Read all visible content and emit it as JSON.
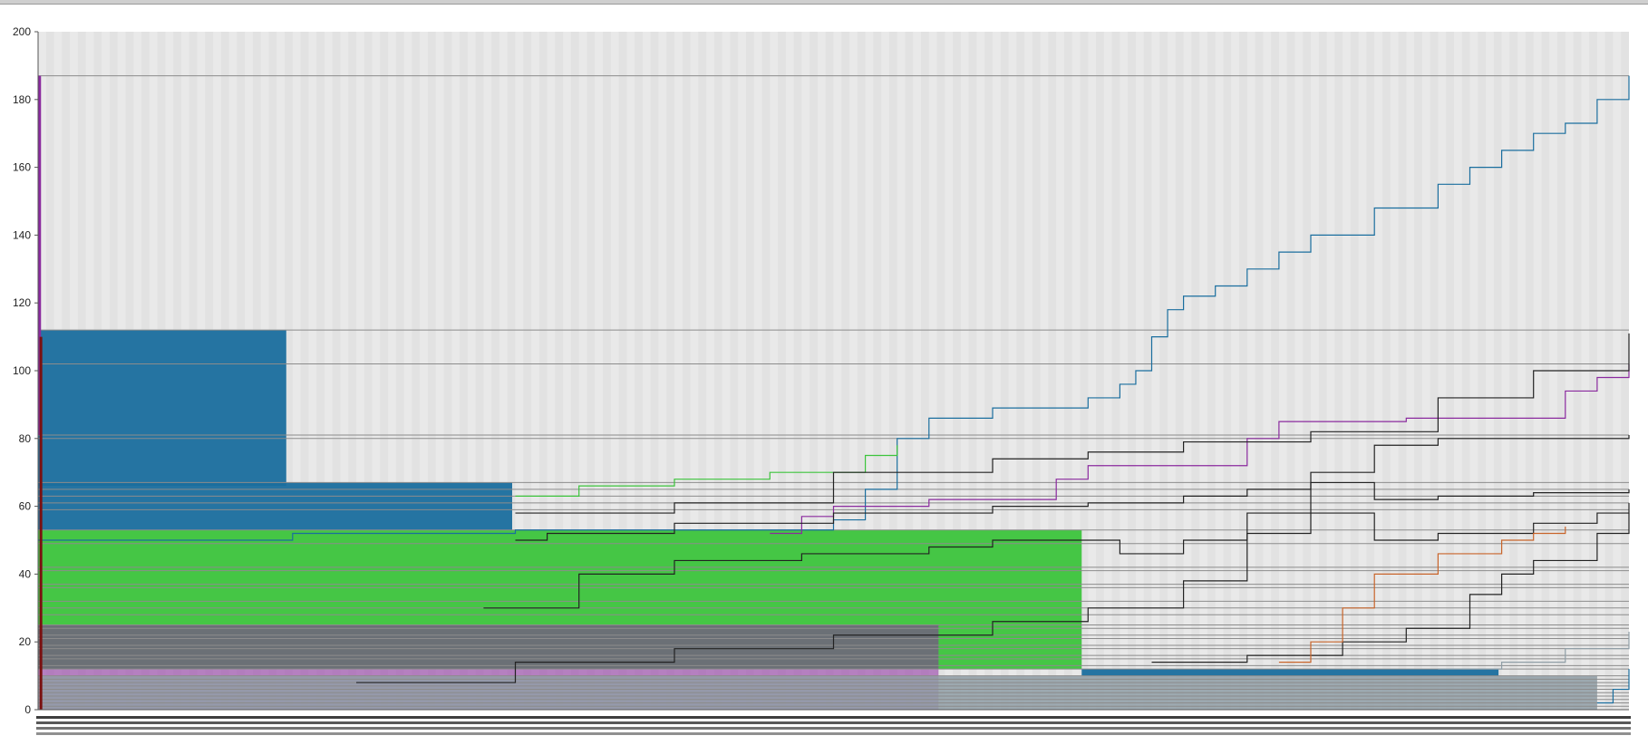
{
  "chart_data": {
    "type": "line",
    "title": "",
    "xlabel": "",
    "ylabel": "",
    "ylim": [
      0,
      200
    ],
    "y_ticks": [
      "0",
      "20",
      "40",
      "60",
      "80",
      "100",
      "120",
      "140",
      "160",
      "180",
      "200"
    ],
    "x_categories_count": 500,
    "grid": "vertical bands",
    "legend": "none",
    "colors": {
      "plot_background": "#e2e2e2",
      "band_light": "#e9e9e9",
      "horizontal_line": "#8c8c8c",
      "blue": "#1a6e9e",
      "green": "#3cc43c",
      "purple": "#8a2a9e",
      "orange": "#c8642a",
      "gray": "#8f9ea6",
      "black": "#222222",
      "dark_red": "#7a1010"
    },
    "blocks": [
      {
        "name": "",
        "color": "blue",
        "x_start": 0,
        "x_end": 78,
        "y_bottom": 66,
        "y_top": 112
      },
      {
        "name": "",
        "color": "blue",
        "x_start": 0,
        "x_end": 149,
        "y_bottom": 53,
        "y_top": 67
      },
      {
        "name": "",
        "color": "green",
        "x_start": 0,
        "x_end": 328,
        "y_bottom": 12,
        "y_top": 53
      },
      {
        "name": "",
        "color": "purple",
        "x_start": 0,
        "x_end": 283,
        "y_bottom": 0,
        "y_top": 25
      },
      {
        "name": "",
        "color": "gray",
        "x_start": 0,
        "x_end": 490,
        "y_bottom": 0,
        "y_top": 10
      },
      {
        "name": "",
        "color": "blue",
        "x_start": 328,
        "x_end": 459,
        "y_bottom": 10,
        "y_top": 12
      }
    ],
    "series": [
      {
        "name": "",
        "color": "blue",
        "points": [
          [
            0,
            50
          ],
          [
            80,
            52
          ],
          [
            150,
            53
          ],
          [
            250,
            56
          ],
          [
            260,
            65
          ],
          [
            270,
            80
          ],
          [
            280,
            86
          ],
          [
            300,
            89
          ],
          [
            330,
            92
          ],
          [
            340,
            96
          ],
          [
            345,
            100
          ],
          [
            350,
            110
          ],
          [
            355,
            118
          ],
          [
            360,
            122
          ],
          [
            370,
            125
          ],
          [
            380,
            130
          ],
          [
            390,
            135
          ],
          [
            400,
            140
          ],
          [
            420,
            148
          ],
          [
            440,
            155
          ],
          [
            450,
            160
          ],
          [
            460,
            165
          ],
          [
            470,
            170
          ],
          [
            480,
            173
          ],
          [
            490,
            180
          ],
          [
            500,
            187
          ]
        ]
      },
      {
        "name": "",
        "color": "green",
        "points": [
          [
            150,
            63
          ],
          [
            170,
            66
          ],
          [
            200,
            68
          ],
          [
            230,
            70
          ],
          [
            260,
            75
          ],
          [
            270,
            78
          ]
        ]
      },
      {
        "name": "",
        "color": "purple",
        "points": [
          [
            230,
            52
          ],
          [
            240,
            57
          ],
          [
            250,
            60
          ],
          [
            280,
            62
          ],
          [
            320,
            68
          ],
          [
            330,
            72
          ],
          [
            380,
            80
          ],
          [
            390,
            85
          ],
          [
            430,
            86
          ],
          [
            480,
            94
          ],
          [
            490,
            98
          ],
          [
            500,
            102
          ]
        ]
      },
      {
        "name": "",
        "color": "black",
        "points": [
          [
            150,
            58
          ],
          [
            200,
            61
          ],
          [
            250,
            70
          ],
          [
            300,
            74
          ],
          [
            330,
            76
          ],
          [
            360,
            79
          ],
          [
            400,
            82
          ],
          [
            440,
            92
          ],
          [
            470,
            100
          ],
          [
            500,
            111
          ]
        ]
      },
      {
        "name": "",
        "color": "black",
        "points": [
          [
            150,
            50
          ],
          [
            160,
            52
          ],
          [
            200,
            55
          ],
          [
            250,
            58
          ],
          [
            300,
            60
          ],
          [
            330,
            61
          ],
          [
            360,
            63
          ],
          [
            380,
            65
          ],
          [
            400,
            67
          ],
          [
            420,
            62
          ],
          [
            440,
            63
          ],
          [
            470,
            64
          ],
          [
            500,
            65
          ]
        ]
      },
      {
        "name": "",
        "color": "black",
        "points": [
          [
            140,
            30
          ],
          [
            170,
            40
          ],
          [
            200,
            44
          ],
          [
            240,
            46
          ],
          [
            280,
            48
          ],
          [
            300,
            50
          ],
          [
            320,
            50
          ],
          [
            340,
            46
          ],
          [
            360,
            50
          ],
          [
            380,
            58
          ],
          [
            400,
            70
          ],
          [
            420,
            78
          ],
          [
            440,
            80
          ],
          [
            460,
            80
          ],
          [
            480,
            80
          ],
          [
            500,
            81
          ]
        ]
      },
      {
        "name": "",
        "color": "black",
        "points": [
          [
            100,
            8
          ],
          [
            150,
            14
          ],
          [
            200,
            18
          ],
          [
            250,
            22
          ],
          [
            300,
            26
          ],
          [
            330,
            30
          ],
          [
            360,
            38
          ],
          [
            380,
            52
          ],
          [
            400,
            58
          ],
          [
            420,
            50
          ],
          [
            440,
            52
          ],
          [
            470,
            55
          ],
          [
            490,
            58
          ],
          [
            500,
            61
          ]
        ]
      },
      {
        "name": "",
        "color": "black",
        "points": [
          [
            350,
            14
          ],
          [
            380,
            16
          ],
          [
            410,
            20
          ],
          [
            430,
            24
          ],
          [
            450,
            34
          ],
          [
            460,
            40
          ],
          [
            470,
            44
          ],
          [
            490,
            52
          ],
          [
            500,
            58
          ]
        ]
      },
      {
        "name": "",
        "color": "orange",
        "points": [
          [
            390,
            14
          ],
          [
            400,
            20
          ],
          [
            410,
            30
          ],
          [
            420,
            40
          ],
          [
            440,
            46
          ],
          [
            460,
            50
          ],
          [
            470,
            52
          ],
          [
            480,
            54
          ]
        ]
      },
      {
        "name": "",
        "color": "gray",
        "points": [
          [
            440,
            12
          ],
          [
            460,
            14
          ],
          [
            480,
            18
          ],
          [
            500,
            23
          ]
        ]
      },
      {
        "name": "",
        "color": "blue",
        "points": [
          [
            490,
            2
          ],
          [
            495,
            6
          ],
          [
            500,
            12
          ]
        ]
      }
    ],
    "horizontal_lines_y": [
      187,
      112,
      102,
      81,
      80,
      67,
      65,
      63,
      61,
      59,
      53,
      49,
      42,
      41,
      37,
      36,
      32,
      30,
      28,
      25,
      24,
      22,
      21,
      19,
      18,
      16,
      15,
      13,
      12,
      10,
      9,
      8,
      7,
      6,
      5,
      4,
      3,
      2,
      1
    ],
    "vertical_markers": [
      {
        "color": "purple",
        "x": 0.5,
        "y_bottom": 81,
        "y_top": 187
      },
      {
        "color": "dark_red",
        "x": 0.9,
        "y_bottom": 0,
        "y_top": 110
      }
    ]
  }
}
